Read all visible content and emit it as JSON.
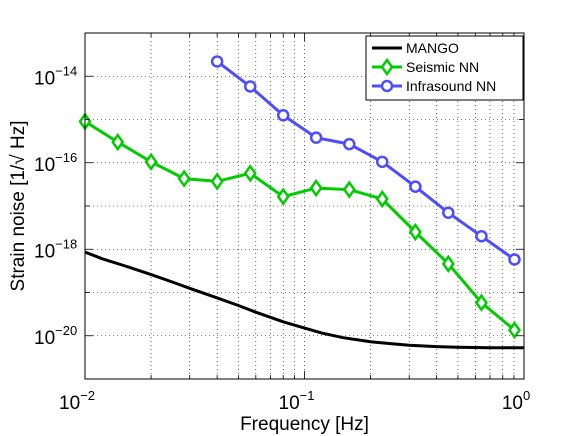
{
  "chart_data": {
    "type": "line",
    "title": "",
    "xlabel": "Frequency [Hz]",
    "ylabel": "Strain noise [1/√ Hz]",
    "xscale": "log",
    "yscale": "log",
    "xlim": [
      0.01,
      1
    ],
    "ylim": [
      1e-21,
      1e-13
    ],
    "grid": "on (major and minor, dotted)",
    "legend_position": "top-right",
    "x_ticks": [
      {
        "value": 0.01,
        "base": "10",
        "exp": "−2"
      },
      {
        "value": 0.1,
        "base": "10",
        "exp": "−1"
      },
      {
        "value": 1,
        "base": "10",
        "exp": "0"
      }
    ],
    "y_ticks": [
      {
        "value": 1e-20,
        "base": "10",
        "exp": "−20"
      },
      {
        "value": 1e-18,
        "base": "10",
        "exp": "−18"
      },
      {
        "value": 1e-16,
        "base": "10",
        "exp": "−16"
      },
      {
        "value": 1e-14,
        "base": "10",
        "exp": "−14"
      }
    ],
    "series": [
      {
        "name": "MANGO",
        "color": "#000000",
        "marker": "none",
        "x": [
          0.01,
          0.012,
          0.015,
          0.02,
          0.025,
          0.03,
          0.04,
          0.05,
          0.06,
          0.08,
          0.1,
          0.12,
          0.15,
          0.2,
          0.25,
          0.3,
          0.4,
          0.5,
          0.7,
          1.0
        ],
        "y": [
          8.6e-19,
          6e-19,
          4.2e-19,
          2.6e-19,
          1.75e-19,
          1.25e-19,
          7.5e-20,
          5e-20,
          3.5e-20,
          2.1e-20,
          1.5e-20,
          1.15e-20,
          9e-21,
          7.3e-21,
          6.5e-21,
          6e-21,
          5.6e-21,
          5.4e-21,
          5.3e-21,
          5.3e-21
        ]
      },
      {
        "name": "Seismic NN",
        "color": "#00cc00",
        "marker": "diamond",
        "x": [
          0.01,
          0.0141,
          0.02,
          0.0283,
          0.04,
          0.0566,
          0.08,
          0.113,
          0.16,
          0.226,
          0.32,
          0.452,
          0.64,
          0.905
        ],
        "y": [
          9e-16,
          3e-16,
          1.05e-16,
          4.3e-17,
          3.7e-17,
          5.7e-17,
          1.65e-17,
          2.6e-17,
          2.4e-17,
          1.45e-17,
          2.5e-18,
          4.6e-19,
          5.8e-20,
          1.35e-20
        ]
      },
      {
        "name": "Infrasound NN",
        "color": "#4d4dff",
        "marker": "circle",
        "x": [
          0.04,
          0.0566,
          0.08,
          0.113,
          0.16,
          0.226,
          0.32,
          0.452,
          0.64,
          0.905
        ],
        "y": [
          2.2e-14,
          5.8e-15,
          1.25e-15,
          3.8e-16,
          2.7e-16,
          1.05e-16,
          2.8e-17,
          7e-18,
          2e-18,
          5.8e-19
        ]
      }
    ]
  }
}
